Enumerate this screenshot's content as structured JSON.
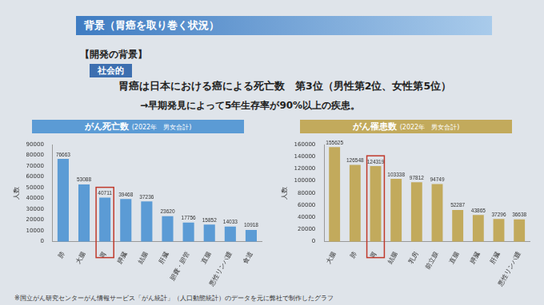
{
  "header": {
    "title": "背景（胃癌を取り巻く状況）"
  },
  "section": "【開発の背景】",
  "tag": "社会的",
  "lines": [
    "胃癌は日本における癌による死亡数　第3位（男性第2位、女性第5位）",
    "→早期発見によって5年生存率が90%以上の疾患。"
  ],
  "footnote": "※国立がん研究センターがん情報サービス「がん統計」（人口動態統計）のデータを元に弊社で制作したグラフ",
  "chart_data": [
    {
      "type": "bar",
      "title": "がん死亡数",
      "subtitle": "(2022年　男女合計)",
      "ylabel": "人数",
      "categories": [
        "肺",
        "大腸",
        "胃",
        "膵臓",
        "結腸",
        "肝臓",
        "胆嚢・胆管",
        "直腸",
        "悪性リンパ腫",
        "食道"
      ],
      "values": [
        76663,
        53088,
        40711,
        39468,
        37236,
        23620,
        17756,
        15852,
        14033,
        10918
      ],
      "color": "#5b9bd5",
      "ylim": [
        0,
        90000
      ],
      "yticks": [
        0,
        10000,
        20000,
        30000,
        40000,
        50000,
        60000,
        70000,
        80000,
        90000
      ],
      "grid": false,
      "data_labels": true
    },
    {
      "type": "bar",
      "title": "がん罹患数",
      "subtitle": "(2022年　男女合計)",
      "ylabel": "人数",
      "categories": [
        "大腸",
        "肺",
        "胃",
        "結腸",
        "乳房",
        "前立腺",
        "直腸",
        "膵臓",
        "肝臓",
        "悪性リンパ腫"
      ],
      "values": [
        155625,
        126548,
        124319,
        103338,
        97812,
        94749,
        52287,
        43865,
        37296,
        36638
      ],
      "color": "#c2aa5c",
      "ylim": [
        0,
        160000
      ],
      "yticks": [
        0,
        20000,
        40000,
        60000,
        80000,
        100000,
        120000,
        140000,
        160000
      ],
      "grid": false,
      "data_labels": true
    }
  ]
}
